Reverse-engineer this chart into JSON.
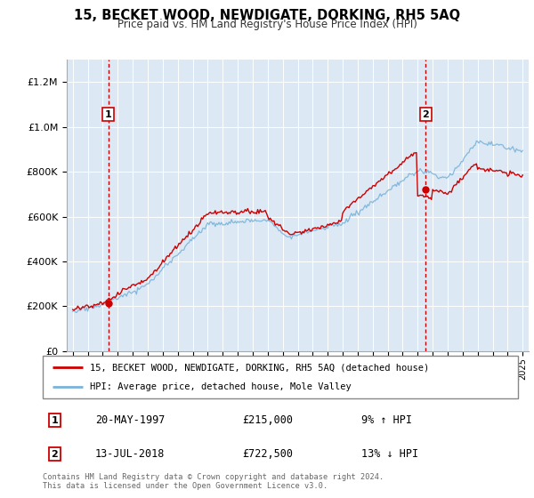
{
  "title": "15, BECKET WOOD, NEWDIGATE, DORKING, RH5 5AQ",
  "subtitle": "Price paid vs. HM Land Registry's House Price Index (HPI)",
  "legend_line1": "15, BECKET WOOD, NEWDIGATE, DORKING, RH5 5AQ (detached house)",
  "legend_line2": "HPI: Average price, detached house, Mole Valley",
  "transaction1_date": "20-MAY-1997",
  "transaction1_price": "£215,000",
  "transaction1_pct": "9% ↑ HPI",
  "transaction1_year": 1997.375,
  "transaction1_value": 215000,
  "transaction2_date": "13-JUL-2018",
  "transaction2_price": "£722,500",
  "transaction2_pct": "13% ↓ HPI",
  "transaction2_year": 2018.542,
  "transaction2_value": 722500,
  "footer": "Contains HM Land Registry data © Crown copyright and database right 2024.\nThis data is licensed under the Open Government Licence v3.0.",
  "hpi_color": "#7ab3d9",
  "price_color": "#cc0000",
  "dashed_color": "#cc0000",
  "bg_color": "#dce9f5",
  "white": "#ffffff",
  "grid_color": "#ffffff",
  "ylim": [
    0,
    1300000
  ],
  "yticks": [
    0,
    200000,
    400000,
    600000,
    800000,
    1000000,
    1200000
  ],
  "xlim_left": 1994.6,
  "xlim_right": 2025.4
}
